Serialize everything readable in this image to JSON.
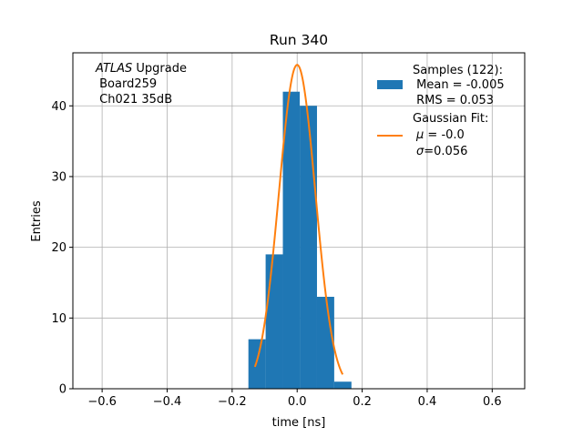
{
  "chart_data": {
    "type": "bar",
    "title": "Run 340",
    "xlabel": "time [ns]",
    "ylabel": "Entries",
    "xlim": [
      -0.69,
      0.7
    ],
    "ylim": [
      0,
      47.5
    ],
    "grid": true,
    "x_ticks": [
      -0.6,
      -0.4,
      -0.2,
      0.0,
      0.2,
      0.4,
      0.6
    ],
    "x_tick_labels": [
      "−0.6",
      "−0.4",
      "−0.2",
      "0.0",
      "0.2",
      "0.4",
      "0.6"
    ],
    "y_ticks": [
      0,
      10,
      20,
      30,
      40
    ],
    "y_tick_labels": [
      "0",
      "10",
      "20",
      "30",
      "40"
    ],
    "bins": [
      {
        "left": -0.15,
        "right": -0.097,
        "count": 7
      },
      {
        "left": -0.097,
        "right": -0.044,
        "count": 19
      },
      {
        "left": -0.044,
        "right": 0.008,
        "count": 42
      },
      {
        "left": 0.008,
        "right": 0.061,
        "count": 40
      },
      {
        "left": 0.061,
        "right": 0.114,
        "count": 13
      },
      {
        "left": 0.114,
        "right": 0.167,
        "count": 1
      }
    ],
    "fit": {
      "mu": 0.0,
      "sigma": 0.056,
      "amplitude": 45.8,
      "x_range": [
        -0.13,
        0.14
      ]
    },
    "colors": {
      "bars": "#1f77b4",
      "fit": "#ff7f0e",
      "grid": "#b0b0b0"
    },
    "annotation": {
      "line1_italic": "ATLAS",
      "line1_rest": " Upgrade",
      "line2": " Board259",
      "line3": " Ch021 35dB"
    },
    "legend": {
      "position": "top-right",
      "samples": {
        "line1": "Samples (122):",
        "line2": " Mean = -0.005",
        "line3": " RMS = 0.053"
      },
      "gauss": {
        "line1": "Gaussian Fit:",
        "mu_symbol": "μ",
        "mu_rest": " = -0.0",
        "sigma_symbol": "σ",
        "sigma_rest": "=0.056"
      }
    }
  }
}
